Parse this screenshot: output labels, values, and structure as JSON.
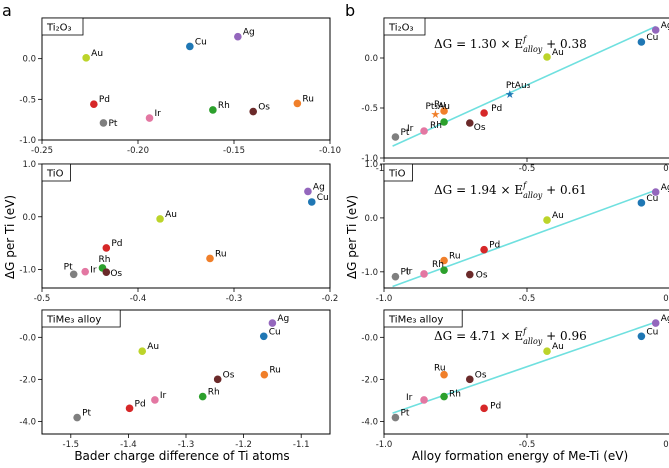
{
  "panel_letters": {
    "left": "a",
    "right": "b"
  },
  "left_xlabel": "Bader charge difference of Ti atoms",
  "left_ylabel": "ΔG per Ti (eV)",
  "right_xlabel": "Alloy formation energy of Me-Ti (eV)",
  "right_ylabel": "ΔG per Ti (eV)",
  "colors": {
    "Au": "#bcd42a",
    "Ag": "#9467bd",
    "Cu": "#1f77b4",
    "Pd": "#d62728",
    "Pt": "#7f7f7f",
    "Ir": "#e377a2",
    "Rh": "#2ca02c",
    "Os": "#6b2a2a",
    "Ru": "#f07f2a",
    "PtAu3": "#1f77b4",
    "Pt3Au": "#f07f2a",
    "fit": "#6fe0df"
  },
  "chart_data": [
    {
      "id": "a1",
      "type": "scatter",
      "title": "Ti₂O₃",
      "xlim": [
        -0.25,
        -0.1
      ],
      "ylim": [
        -1.0,
        0.5
      ],
      "xticks": [
        -0.25,
        -0.2,
        -0.15,
        -0.1
      ],
      "xticklabels": [
        "-0.25",
        "-0.20",
        "-0.15",
        "-0.10"
      ],
      "yticks": [
        -1.0,
        -0.5,
        0.0
      ],
      "yticklabels": [
        "-1.0",
        "-0.5",
        "0.0"
      ],
      "points": [
        {
          "label": "Au",
          "x": -0.227,
          "y": 0.01
        },
        {
          "label": "Cu",
          "x": -0.173,
          "y": 0.15
        },
        {
          "label": "Ag",
          "x": -0.148,
          "y": 0.27
        },
        {
          "label": "Pd",
          "x": -0.223,
          "y": -0.56
        },
        {
          "label": "Pt",
          "x": -0.218,
          "y": -0.79
        },
        {
          "label": "Ir",
          "x": -0.194,
          "y": -0.73
        },
        {
          "label": "Rh",
          "x": -0.161,
          "y": -0.63
        },
        {
          "label": "Os",
          "x": -0.14,
          "y": -0.65
        },
        {
          "label": "Ru",
          "x": -0.117,
          "y": -0.55
        }
      ]
    },
    {
      "id": "a2",
      "type": "scatter",
      "title": "TiO",
      "xlim": [
        -0.5,
        -0.2
      ],
      "ylim": [
        -1.35,
        1.0
      ],
      "xticks": [
        -0.5,
        -0.4,
        -0.3,
        -0.2
      ],
      "xticklabels": [
        "-0.5",
        "-0.4",
        "-0.3",
        "-0.2"
      ],
      "yticks": [
        -1.0,
        0.0,
        1.0
      ],
      "yticklabels": [
        "-1.0",
        "0.0",
        "1.0"
      ],
      "points": [
        {
          "label": "Ag",
          "x": -0.223,
          "y": 0.48
        },
        {
          "label": "Cu",
          "x": -0.219,
          "y": 0.28
        },
        {
          "label": "Au",
          "x": -0.377,
          "y": -0.04
        },
        {
          "label": "Pd",
          "x": -0.433,
          "y": -0.59
        },
        {
          "label": "Ru",
          "x": -0.325,
          "y": -0.79
        },
        {
          "label": "Rh",
          "x": -0.437,
          "y": -0.97
        },
        {
          "label": "Os",
          "x": -0.433,
          "y": -1.05
        },
        {
          "label": "Ir",
          "x": -0.455,
          "y": -1.04
        },
        {
          "label": "Pt",
          "x": -0.467,
          "y": -1.09
        }
      ]
    },
    {
      "id": "a3",
      "type": "scatter",
      "title": "TiMe₃ alloy",
      "xlim": [
        -1.55,
        -1.05
      ],
      "ylim": [
        -4.6,
        1.3
      ],
      "xticks": [
        -1.5,
        -1.4,
        -1.3,
        -1.2,
        -1.1
      ],
      "xticklabels": [
        "-1.5",
        "-1.4",
        "-1.3",
        "-1.2",
        "-1.1"
      ],
      "yticks": [
        -4.0,
        -2.0,
        0.0
      ],
      "yticklabels": [
        "-4.0",
        "-2.0",
        "-0.0"
      ],
      "points": [
        {
          "label": "Ag",
          "x": -1.15,
          "y": 0.68
        },
        {
          "label": "Cu",
          "x": -1.165,
          "y": 0.05
        },
        {
          "label": "Au",
          "x": -1.376,
          "y": -0.66
        },
        {
          "label": "Os",
          "x": -1.245,
          "y": -2.0
        },
        {
          "label": "Ru",
          "x": -1.164,
          "y": -1.78
        },
        {
          "label": "Rh",
          "x": -1.271,
          "y": -2.82
        },
        {
          "label": "Ir",
          "x": -1.354,
          "y": -2.98
        },
        {
          "label": "Pd",
          "x": -1.398,
          "y": -3.38
        },
        {
          "label": "Pt",
          "x": -1.489,
          "y": -3.82
        }
      ]
    },
    {
      "id": "b1",
      "type": "scatter",
      "title": "Ti₂O₃",
      "equation": {
        "slope": "1.30",
        "intercept": "+0.38",
        "lhs": "ΔG = 1.30 × E",
        "sup": "f",
        "sub": "alloy",
        "tail": " + 0.38"
      },
      "fit": {
        "slope": 1.3,
        "intercept": 0.38
      },
      "xlim": [
        -1.0,
        0.0
      ],
      "ylim": [
        -1.0,
        0.4
      ],
      "xticks": [
        -1.0,
        -0.5,
        0.0
      ],
      "xticklabels": [
        "-1.0",
        "-0.5",
        "0.0"
      ],
      "yticks": [
        -1.0,
        -0.5,
        0.0
      ],
      "yticklabels": [
        "-1.0",
        "-0.5",
        "0.0"
      ],
      "points": [
        {
          "label": "Ag",
          "x": -0.05,
          "y": 0.28
        },
        {
          "label": "Cu",
          "x": -0.1,
          "y": 0.16
        },
        {
          "label": "Au",
          "x": -0.43,
          "y": 0.01
        },
        {
          "label": "Pd",
          "x": -0.65,
          "y": -0.55
        },
        {
          "label": "Os",
          "x": -0.7,
          "y": -0.65
        },
        {
          "label": "Ru",
          "x": -0.79,
          "y": -0.53
        },
        {
          "label": "Rh",
          "x": -0.79,
          "y": -0.64
        },
        {
          "label": "Ir",
          "x": -0.86,
          "y": -0.73
        },
        {
          "label": "Pt",
          "x": -0.96,
          "y": -0.79
        }
      ],
      "stars": [
        {
          "label": "PtAu₃",
          "x": -0.56,
          "y": -0.36
        },
        {
          "label": "Pt₃Au",
          "x": -0.82,
          "y": -0.56
        }
      ]
    },
    {
      "id": "b2",
      "type": "scatter",
      "title": "TiO",
      "equation": {
        "slope": "1.94",
        "intercept": "+0.61",
        "lhs": "ΔG = 1.94 × E",
        "sup": "f",
        "sub": "alloy",
        "tail": " + 0.61"
      },
      "fit": {
        "slope": 1.94,
        "intercept": 0.61
      },
      "xlim": [
        -1.0,
        0.0
      ],
      "ylim": [
        -1.3,
        1.0
      ],
      "xticks": [
        -1.0,
        -0.5,
        0.0
      ],
      "xticklabels": [
        "-1.0",
        "-0.5",
        "0.0"
      ],
      "yticks": [
        -1.0,
        0.0,
        1.0
      ],
      "yticklabels": [
        "-1.0",
        "0.0",
        "1.0"
      ],
      "points": [
        {
          "label": "Ag",
          "x": -0.05,
          "y": 0.48
        },
        {
          "label": "Cu",
          "x": -0.1,
          "y": 0.28
        },
        {
          "label": "Au",
          "x": -0.43,
          "y": -0.04
        },
        {
          "label": "Pd",
          "x": -0.65,
          "y": -0.59
        },
        {
          "label": "Ru",
          "x": -0.79,
          "y": -0.79
        },
        {
          "label": "Rh",
          "x": -0.79,
          "y": -0.97
        },
        {
          "label": "Os",
          "x": -0.7,
          "y": -1.05
        },
        {
          "label": "Ir",
          "x": -0.86,
          "y": -1.04
        },
        {
          "label": "Pt",
          "x": -0.96,
          "y": -1.09
        }
      ]
    },
    {
      "id": "b3",
      "type": "scatter",
      "title": "TiMe₃ alloy",
      "equation": {
        "slope": "4.71",
        "intercept": "+0.96",
        "lhs": "ΔG = 4.71 × E",
        "sup": "f",
        "sub": "alloy",
        "tail": " + 0.96"
      },
      "fit": {
        "slope": 4.71,
        "intercept": 0.96
      },
      "xlim": [
        -1.0,
        0.0
      ],
      "ylim": [
        -4.6,
        1.3
      ],
      "xticks": [
        -1.0,
        -0.5,
        0.0
      ],
      "xticklabels": [
        "-1.0",
        "-0.5",
        "0.0"
      ],
      "yticks": [
        -4.0,
        -2.0,
        0.0
      ],
      "yticklabels": [
        "-4.0",
        "-2.0",
        "-0.0"
      ],
      "points": [
        {
          "label": "Ag",
          "x": -0.05,
          "y": 0.68
        },
        {
          "label": "Cu",
          "x": -0.1,
          "y": 0.05
        },
        {
          "label": "Au",
          "x": -0.43,
          "y": -0.66
        },
        {
          "label": "Ru",
          "x": -0.79,
          "y": -1.78
        },
        {
          "label": "Os",
          "x": -0.7,
          "y": -2.0
        },
        {
          "label": "Rh",
          "x": -0.79,
          "y": -2.82
        },
        {
          "label": "Ir",
          "x": -0.86,
          "y": -2.98
        },
        {
          "label": "Pd",
          "x": -0.65,
          "y": -3.38
        },
        {
          "label": "Pt",
          "x": -0.96,
          "y": -3.82
        }
      ]
    }
  ]
}
